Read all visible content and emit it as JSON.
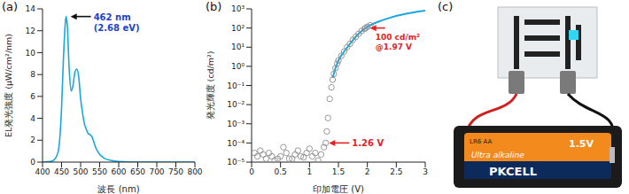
{
  "chart_data": [
    {
      "title": "(a)",
      "type": "line",
      "x_label": "波長 (nm)",
      "y_label": "EL発光強度 (μW/cm²/nm)",
      "x": [
        400,
        420,
        430,
        440,
        445,
        450,
        455,
        460,
        462,
        465,
        470,
        475,
        480,
        485,
        490,
        495,
        500,
        505,
        510,
        515,
        520,
        525,
        530,
        535,
        540,
        550,
        560,
        580,
        600,
        650,
        700,
        800
      ],
      "values": [
        0,
        0.05,
        0.2,
        0.8,
        2,
        5,
        9.5,
        12.8,
        13.3,
        12.5,
        8.5,
        6.5,
        7,
        8.2,
        8.5,
        7.8,
        5.8,
        4.5,
        3.5,
        3,
        2.6,
        2.5,
        2.3,
        1.8,
        1.3,
        0.7,
        0.4,
        0.15,
        0.05,
        0,
        0,
        0
      ],
      "color": "#1aa7df",
      "xlim": [
        400,
        800
      ],
      "xticks": [
        400,
        450,
        500,
        550,
        600,
        650,
        700,
        750,
        800
      ],
      "ylim": [
        0,
        14
      ],
      "yticks": [
        0,
        2,
        4,
        6,
        8,
        10,
        12,
        14
      ],
      "annotations": [
        {
          "text": [
            "462 nm",
            "(2.68 eV)"
          ],
          "x": 462,
          "y": 13.3,
          "color": "#1f3fcf"
        }
      ]
    },
    {
      "title": "(b)",
      "type": "scatter",
      "log": "y",
      "x_label": "印加電圧 (V)",
      "y_label": "発光輝度 (cd/m²)",
      "series": [
        {
          "type": "scatter",
          "marker": "open_circle",
          "color": "#8c8c8c",
          "x": [
            0.05,
            0.1,
            0.15,
            0.2,
            0.25,
            0.3,
            0.35,
            0.4,
            0.45,
            0.5,
            0.55,
            0.6,
            0.65,
            0.7,
            0.75,
            0.8,
            0.85,
            0.9,
            0.95,
            1.0,
            1.05,
            1.1,
            1.15,
            1.2,
            1.25,
            1.28,
            1.3,
            1.32,
            1.35,
            1.38,
            1.4,
            1.42,
            1.45,
            1.48,
            1.5,
            1.55,
            1.6,
            1.65,
            1.7,
            1.75,
            1.8,
            1.85,
            1.9,
            1.95,
            1.97,
            2.0,
            2.05
          ],
          "values": [
            3e-05,
            2e-05,
            4e-05,
            2.5e-05,
            1.5e-05,
            3e-05,
            2e-05,
            1.2e-05,
            1.5e-05,
            2e-05,
            6e-05,
            3e-05,
            1.5e-05,
            1.5e-05,
            2.5e-05,
            4e-05,
            2e-05,
            1.8e-05,
            3e-05,
            5e-05,
            2e-05,
            3e-05,
            1.2e-05,
            2.5e-05,
            6e-05,
            0.0001,
            0.0004,
            0.002,
            0.02,
            0.08,
            0.2,
            0.4,
            0.8,
            1.4,
            2,
            3.5,
            6,
            10,
            15,
            24,
            35,
            50,
            70,
            90,
            100,
            115,
            140
          ]
        },
        {
          "type": "line",
          "color": "#1aa7df",
          "x": [
            1.4,
            1.45,
            1.5,
            1.6,
            1.7,
            1.8,
            1.9,
            2.0,
            2.2,
            2.4,
            2.6,
            2.8,
            3.0
          ],
          "values": [
            0.25,
            0.8,
            2,
            6,
            15,
            35,
            70,
            115,
            220,
            350,
            500,
            650,
            800
          ]
        }
      ],
      "xlim": [
        0,
        3
      ],
      "xticks": [
        0,
        0.5,
        1,
        1.5,
        2,
        2.5,
        3
      ],
      "ylim": [
        1e-05,
        1000
      ],
      "yticks": [
        {
          "value": 1e-05,
          "label": "10⁻⁵"
        },
        {
          "value": 0.0001,
          "label": "10⁻⁴"
        },
        {
          "value": 0.001,
          "label": "10⁻³"
        },
        {
          "value": 0.01,
          "label": "10⁻²"
        },
        {
          "value": 0.1,
          "label": "10⁻¹"
        },
        {
          "value": 1,
          "label": "10⁰"
        },
        {
          "value": 10,
          "label": "10¹"
        },
        {
          "value": 100,
          "label": "10²"
        },
        {
          "value": 1000,
          "label": "10³"
        }
      ],
      "annotations": [
        {
          "text": [
            "100 cd/m²",
            "@1.97 V"
          ],
          "x": 1.97,
          "y": 100,
          "color": "#e8201f"
        },
        {
          "text": [
            "1.26 V"
          ],
          "x": 1.26,
          "y": 0.0001,
          "color": "#e8201f"
        }
      ]
    }
  ],
  "photo": {
    "label": "(c)",
    "battery_texts": [
      "LR6 AA",
      "1.5V",
      "Ultra alkaline",
      "PKCELL"
    ]
  }
}
